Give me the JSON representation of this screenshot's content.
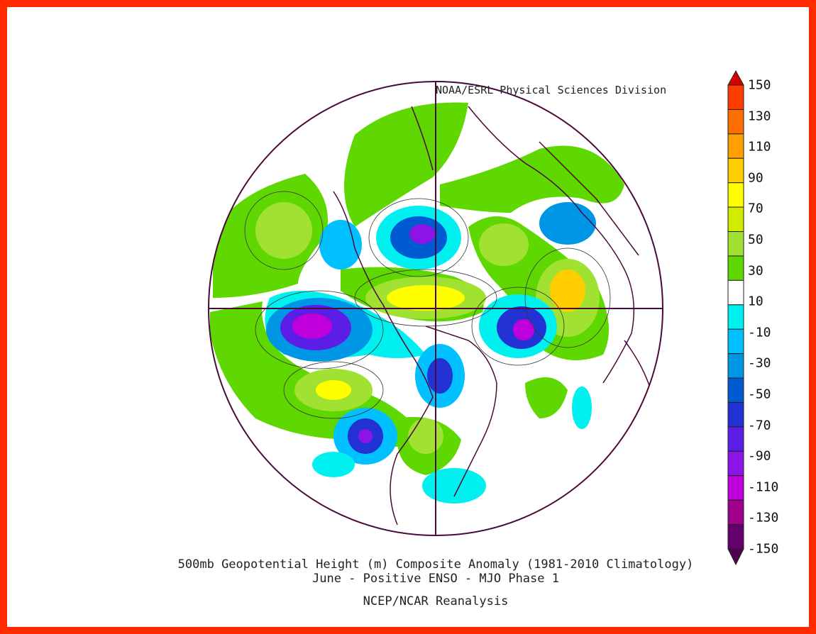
{
  "map": {
    "credit": "NOAA/ESRL Physical Sciences Division",
    "projection": "north polar stereographic",
    "title_line1": "500mb Geopotential Height (m) Composite Anomaly (1981-2010 Climatology)",
    "title_line2": "June - Positive ENSO - MJO Phase 1",
    "source": "NCEP/NCAR Reanalysis"
  },
  "legend": {
    "labels": [
      "150",
      "130",
      "110",
      "90",
      "70",
      "50",
      "30",
      "10",
      "-10",
      "-30",
      "-50",
      "-70",
      "-90",
      "-110",
      "-130",
      "-150"
    ],
    "colors": [
      "#d70000",
      "#ff3c00",
      "#ff6e00",
      "#ffa000",
      "#ffcd00",
      "#ffff00",
      "#d2ec00",
      "#a0e132",
      "#5fd700",
      "#ffffff",
      "#00f0f0",
      "#00c0ff",
      "#0096e6",
      "#005ad2",
      "#2332d2",
      "#5a1ee6",
      "#8c14e6",
      "#c000dc",
      "#a0008c",
      "#64006e",
      "#500050"
    ]
  },
  "colors": {
    "frame": "#ff2a00",
    "coast": "#4a0a3a"
  }
}
